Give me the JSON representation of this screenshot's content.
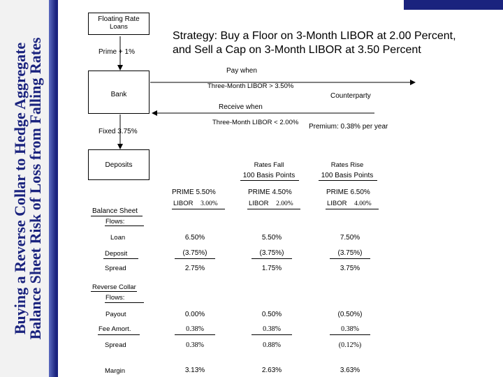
{
  "sidebar": {
    "title_line1": "Buying a Reverse Collar to Hedge Aggregate",
    "title_line2": "Balance Sheet Risk of Loss from Falling Rates"
  },
  "headline": {
    "line1": "Strategy: Buy a Floor on 3-Month LIBOR at 2.00 Percent,",
    "line2": "and Sell a Cap on 3-Month LIBOR at 3.50 Percent"
  },
  "diagram": {
    "floating_rate": "Floating Rate",
    "loans": "Loans",
    "prime_plus": "Prime + 1%",
    "bank": "Bank",
    "counterparty": "Counterparty",
    "pay_when": "Pay when",
    "pay_condition": "Three-Month LIBOR > 3.50%",
    "receive_when": "Receive when",
    "receive_condition": "Three-Month LIBOR < 2.00%",
    "premium": "Premium: 0.38% per year",
    "fixed": "Fixed 3.75%",
    "deposits": "Deposits"
  },
  "scenarios": {
    "headers": [
      {
        "top": "Rates Fall",
        "bottom": "100 Basis Points"
      },
      {
        "top": "Rates Rise",
        "bottom": "100 Basis Points"
      }
    ],
    "prime": [
      "PRIME 5.50%",
      "PRIME 4.50%",
      "PRIME 6.50%"
    ],
    "libor_label": "LIBOR",
    "libor": [
      "3.00%",
      "2.00%",
      "4.00%"
    ]
  },
  "balance_sheet": {
    "title": "Balance Sheet",
    "flows": "Flows:",
    "rows": [
      {
        "label": "Loan",
        "values": [
          "6.50%",
          "5.50%",
          "7.50%"
        ]
      },
      {
        "label": "Deposit",
        "values": [
          "(3.75%)",
          "(3.75%)",
          "(3.75%)"
        ]
      },
      {
        "label": "Spread",
        "values": [
          "2.75%",
          "1.75%",
          "3.75%"
        ]
      }
    ]
  },
  "reverse_collar": {
    "title": "Reverse Collar",
    "flows": "Flows:",
    "rows": [
      {
        "label": "Payout",
        "values": [
          "0.00%",
          "0.50%",
          "(0.50%)"
        ]
      },
      {
        "label": "Fee Amort.",
        "values": [
          "0.38%",
          "0.38%",
          "0.38%"
        ]
      },
      {
        "label": "Spread",
        "values": [
          "0.38%",
          "0.88%",
          "(0.12%)"
        ]
      }
    ]
  },
  "margin": {
    "label": "Margin",
    "values": [
      "3.13%",
      "2.63%",
      "3.63%"
    ]
  }
}
